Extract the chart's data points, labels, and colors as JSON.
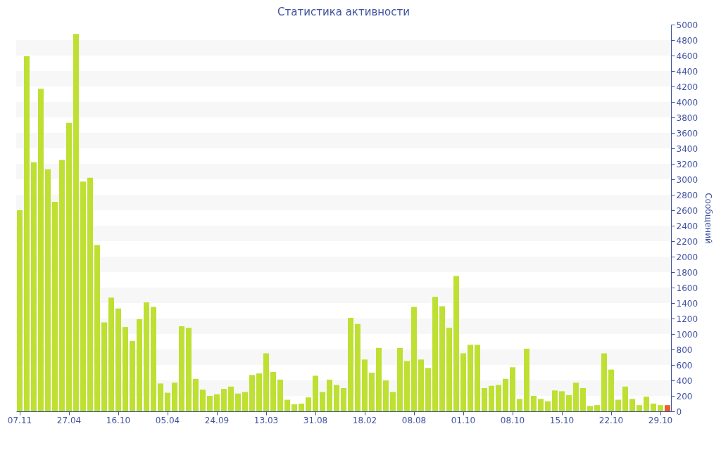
{
  "chart_data": {
    "type": "bar",
    "title": "Статистика активности",
    "ylabel": "Сообщений",
    "categories": [
      "07.11",
      null,
      null,
      null,
      null,
      null,
      null,
      "27.04",
      null,
      null,
      null,
      null,
      null,
      null,
      "16.10",
      null,
      null,
      null,
      null,
      null,
      null,
      "05.04",
      null,
      null,
      null,
      null,
      null,
      null,
      "24.09",
      null,
      null,
      null,
      null,
      null,
      null,
      "13.03",
      null,
      null,
      null,
      null,
      null,
      null,
      "31.08",
      null,
      null,
      null,
      null,
      null,
      null,
      "18.02",
      null,
      null,
      null,
      null,
      null,
      null,
      "08.08",
      null,
      null,
      null,
      null,
      null,
      null,
      "01.10",
      null,
      null,
      null,
      null,
      null,
      null,
      "08.10",
      null,
      null,
      null,
      null,
      null,
      null,
      "15.10",
      null,
      null,
      null,
      null,
      null,
      null,
      "22.10",
      null,
      null,
      null,
      null,
      null,
      null,
      "29.10",
      null
    ],
    "values": [
      2600,
      4590,
      3220,
      4170,
      3130,
      2710,
      3250,
      3730,
      4880,
      2970,
      3020,
      2150,
      1150,
      1470,
      1330,
      1090,
      910,
      1190,
      1410,
      1350,
      360,
      240,
      370,
      1100,
      1080,
      420,
      280,
      200,
      220,
      290,
      320,
      230,
      250,
      470,
      490,
      750,
      510,
      410,
      150,
      90,
      100,
      180,
      460,
      250,
      410,
      340,
      300,
      1210,
      1130,
      670,
      500,
      820,
      400,
      250,
      820,
      650,
      1350,
      670,
      560,
      1480,
      1360,
      1080,
      1750,
      750,
      860,
      860,
      300,
      330,
      340,
      420,
      570,
      160,
      810,
      200,
      160,
      130,
      270,
      260,
      210,
      370,
      300,
      70,
      80,
      750,
      540,
      150,
      320,
      160,
      80,
      190,
      100,
      80,
      80
    ],
    "colors": [
      "#bde032",
      "#bde032",
      "#bde032",
      "#bde032",
      "#bde032",
      "#bde032",
      "#bde032",
      "#bde032",
      "#bde032",
      "#bde032",
      "#bde032",
      "#bde032",
      "#bde032",
      "#bde032",
      "#bde032",
      "#bde032",
      "#bde032",
      "#bde032",
      "#bde032",
      "#bde032",
      "#bde032",
      "#bde032",
      "#bde032",
      "#bde032",
      "#bde032",
      "#bde032",
      "#bde032",
      "#bde032",
      "#bde032",
      "#bde032",
      "#bde032",
      "#bde032",
      "#bde032",
      "#bde032",
      "#bde032",
      "#bde032",
      "#bde032",
      "#bde032",
      "#bde032",
      "#bde032",
      "#bde032",
      "#bde032",
      "#bde032",
      "#bde032",
      "#bde032",
      "#bde032",
      "#bde032",
      "#bde032",
      "#bde032",
      "#bde032",
      "#bde032",
      "#bde032",
      "#bde032",
      "#bde032",
      "#bde032",
      "#bde032",
      "#bde032",
      "#bde032",
      "#bde032",
      "#bde032",
      "#bde032",
      "#bde032",
      "#bde032",
      "#bde032",
      "#bde032",
      "#bde032",
      "#bde032",
      "#bde032",
      "#bde032",
      "#bde032",
      "#bde032",
      "#bde032",
      "#bde032",
      "#bde032",
      "#bde032",
      "#bde032",
      "#bde032",
      "#bde032",
      "#bde032",
      "#bde032",
      "#bde032",
      "#bde032",
      "#bde032",
      "#bde032",
      "#bde032",
      "#bde032",
      "#bde032",
      "#bde032",
      "#bde032",
      "#bde032",
      "#bde032",
      "#bde032",
      "#e8602c"
    ],
    "ylim": [
      0,
      5000
    ],
    "yticks": [
      0,
      200,
      400,
      600,
      800,
      1000,
      1200,
      1400,
      1600,
      1800,
      2000,
      2200,
      2400,
      2600,
      2800,
      3000,
      3200,
      3400,
      3600,
      3800,
      4000,
      4200,
      4400,
      4600,
      4800,
      5000
    ],
    "bands": [
      {
        "axis": "y",
        "from": 200,
        "to": 400,
        "color": "#f7f7f7"
      },
      {
        "axis": "y",
        "from": 600,
        "to": 800,
        "color": "#f7f7f7"
      },
      {
        "axis": "y",
        "from": 1000,
        "to": 1200,
        "color": "#f7f7f7"
      },
      {
        "axis": "y",
        "from": 1400,
        "to": 1600,
        "color": "#f7f7f7"
      },
      {
        "axis": "y",
        "from": 1800,
        "to": 2000,
        "color": "#f7f7f7"
      },
      {
        "axis": "y",
        "from": 2200,
        "to": 2400,
        "color": "#f7f7f7"
      },
      {
        "axis": "y",
        "from": 2600,
        "to": 2800,
        "color": "#f7f7f7"
      },
      {
        "axis": "y",
        "from": 3000,
        "to": 3200,
        "color": "#f7f7f7"
      },
      {
        "axis": "y",
        "from": 3400,
        "to": 3600,
        "color": "#f7f7f7"
      },
      {
        "axis": "y",
        "from": 3800,
        "to": 4000,
        "color": "#f7f7f7"
      },
      {
        "axis": "y",
        "from": 4200,
        "to": 4400,
        "color": "#f7f7f7"
      },
      {
        "axis": "y",
        "from": 4600,
        "to": 4800,
        "color": "#f7f7f7"
      }
    ]
  }
}
